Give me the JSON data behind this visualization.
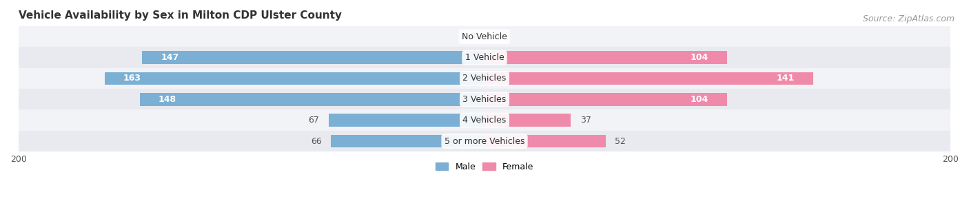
{
  "title": "Vehicle Availability by Sex in Milton CDP Ulster County",
  "source": "Source: ZipAtlas.com",
  "categories": [
    "No Vehicle",
    "1 Vehicle",
    "2 Vehicles",
    "3 Vehicles",
    "4 Vehicles",
    "5 or more Vehicles"
  ],
  "male_values": [
    0,
    147,
    163,
    148,
    67,
    66
  ],
  "female_values": [
    0,
    104,
    141,
    104,
    37,
    52
  ],
  "male_color": "#7bafd4",
  "female_color": "#f08aaa",
  "row_colors": [
    "#f2f3f7",
    "#e8eaef"
  ],
  "xlim": 200,
  "legend_male": "Male",
  "legend_female": "Female",
  "title_fontsize": 11,
  "source_fontsize": 9,
  "label_fontsize": 9,
  "axis_label_fontsize": 9,
  "bar_height": 0.62
}
